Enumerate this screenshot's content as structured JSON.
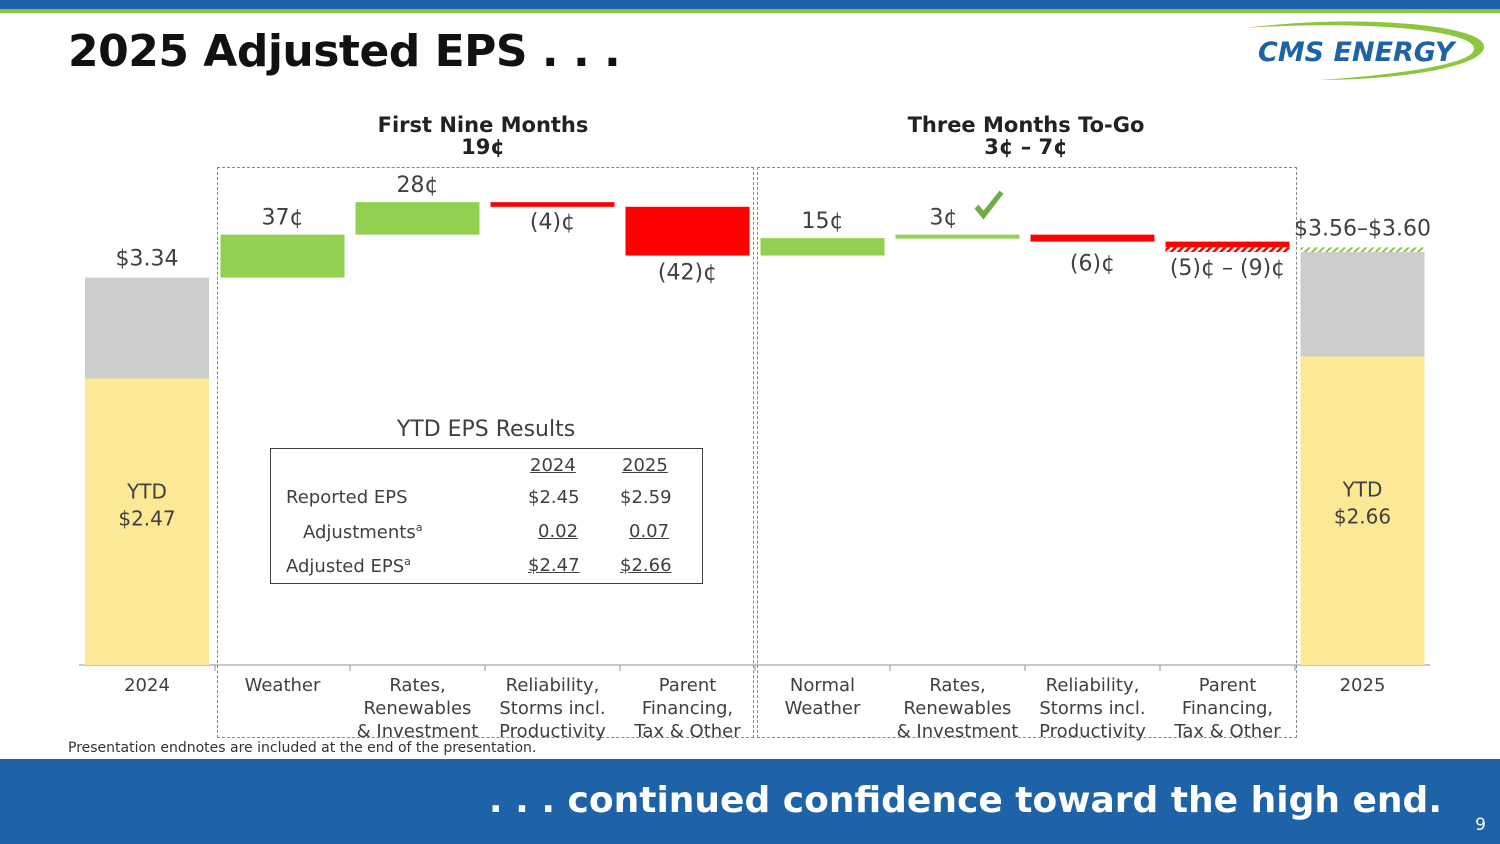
{
  "slide": {
    "title": "2025 Adjusted EPS . . .",
    "logo_text": "CMS ENERGY",
    "endnote": "Presentation endnotes are included at the end of the presentation.",
    "tagline": ". . . continued confidence toward the high end.",
    "page_number": "9"
  },
  "sections": {
    "first": {
      "title": "First Nine Months",
      "subtitle": "19¢"
    },
    "second": {
      "title": "Three Months To-Go",
      "subtitle": "3¢ – 7¢"
    }
  },
  "chart_data": {
    "type": "bar",
    "subtype": "waterfall",
    "unit": "$ per share",
    "categories": [
      "2024",
      "Weather",
      "Rates, Renewables & Investment",
      "Reliability, Storms incl. Productivity",
      "Parent Financing, Tax & Other",
      "Normal Weather",
      "Rates, Renewables & Investment",
      "Reliability, Storms incl. Productivity",
      "Parent Financing, Tax & Other",
      "2025"
    ],
    "category_lines": [
      [
        "2024"
      ],
      [
        "Weather"
      ],
      [
        "Rates,",
        "Renewables",
        "& Investment"
      ],
      [
        "Reliability,",
        "Storms incl.",
        "Productivity"
      ],
      [
        "Parent",
        "Financing,",
        "Tax & Other"
      ],
      [
        "Normal",
        "Weather"
      ],
      [
        "Rates,",
        "Renewables",
        "& Investment"
      ],
      [
        "Reliability,",
        "Storms incl.",
        "Productivity"
      ],
      [
        "Parent",
        "Financing,",
        "Tax & Other"
      ],
      [
        "2025"
      ]
    ],
    "totals": [
      {
        "category": "2024",
        "value": 3.34,
        "ytd": 2.47,
        "label": "$3.34",
        "ytd_label": "YTD",
        "ytd_value_label": "$2.47"
      },
      {
        "category": "2025",
        "range": [
          3.56,
          3.6
        ],
        "ytd": 2.66,
        "label": "$3.56–$3.60",
        "ytd_label": "YTD",
        "ytd_value_label": "$2.66"
      }
    ],
    "changes": [
      {
        "category": "Weather",
        "value": 0.37,
        "label": "37¢",
        "color": "#92d050"
      },
      {
        "category": "Rates, Renewables & Investment",
        "value": 0.28,
        "label": "28¢",
        "color": "#92d050"
      },
      {
        "category": "Reliability, Storms incl. Productivity",
        "value": -0.04,
        "label": "(4)¢",
        "color": "#ff0000"
      },
      {
        "category": "Parent Financing, Tax & Other",
        "value": -0.42,
        "label": "(42)¢",
        "color": "#ff0000"
      },
      {
        "category": "Normal Weather",
        "value": 0.15,
        "label": "15¢",
        "color": "#92d050"
      },
      {
        "category": "Rates, Renewables & Investment",
        "value": 0.03,
        "label": "3¢",
        "color": "#92d050",
        "checkmark": true
      },
      {
        "category": "Reliability, Storms incl. Productivity",
        "value": -0.06,
        "label": "(6)¢",
        "color": "#ff0000"
      },
      {
        "category": "Parent Financing, Tax & Other",
        "range": [
          -0.05,
          -0.09
        ],
        "label": "(5)¢ – (9)¢",
        "color": "#ff0000"
      }
    ],
    "colors": {
      "ytd": "#fbe996",
      "remainder": "#cdcdcd",
      "positive": "#92d050",
      "negative": "#ff0000",
      "checkmark": "#70ad47"
    }
  },
  "eps_table": {
    "title": "YTD EPS Results",
    "columns": [
      "2024",
      "2025"
    ],
    "rows": [
      {
        "label": "Reported EPS",
        "note": "",
        "values": [
          "$2.45",
          "$2.59"
        ]
      },
      {
        "label": "Adjustments",
        "note": "a",
        "values": [
          "0.02",
          "0.07"
        ]
      },
      {
        "label": "Adjusted EPS",
        "note": "a",
        "values": [
          "$2.47",
          "$2.66"
        ]
      }
    ]
  },
  "colors": {
    "brand_blue": "#1e63a8",
    "brand_green": "#8cc63f"
  }
}
